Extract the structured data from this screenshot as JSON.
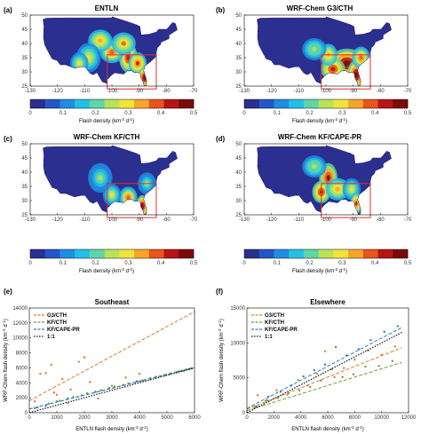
{
  "maps": [
    {
      "panel": "(a)",
      "title": "ENTLN",
      "id": "a"
    },
    {
      "panel": "(b)",
      "title": "WRF-Chem G3/CTH",
      "id": "b"
    },
    {
      "panel": "(c)",
      "title": "WRF-Chem KF/CTH",
      "id": "c"
    },
    {
      "panel": "(d)",
      "title": "WRF-Chem KF/CAPE-PR",
      "id": "d"
    }
  ],
  "map_axes": {
    "xticks": [
      "-130",
      "-120",
      "-110",
      "-100",
      "-90",
      "-80",
      "-70"
    ],
    "yticks": [
      "50",
      "45",
      "40",
      "35",
      "30",
      "25"
    ]
  },
  "colorbar": {
    "ticks": [
      "0",
      "0.1",
      "0.2",
      "0.3",
      "0.4",
      "0.5"
    ],
    "label": "Flash density (km",
    "label_sup1": "-2",
    "label_mid": " d",
    "label_sup2": "-1",
    "label_end": ")",
    "colors": [
      "#2b2f8f",
      "#2456c8",
      "#1f8ee0",
      "#22c0e8",
      "#5fd6a8",
      "#b7e35a",
      "#f2e33a",
      "#f6a52b",
      "#e8551d",
      "#b81414",
      "#7a0a0a"
    ]
  },
  "chart_data": [
    {
      "type": "scatter",
      "panel": "(e)",
      "title": "Southeast",
      "xlabel": "ENTLN  flash density (km",
      "ylabel": "WRF-Chem  flash density (km",
      "xlim": [
        0,
        6000
      ],
      "ylim": [
        0,
        14000
      ],
      "xticks": [
        "0",
        "1000",
        "2000",
        "3000",
        "4000",
        "5000",
        "6000"
      ],
      "yticks": [
        "0",
        "2000",
        "4000",
        "6000",
        "8000",
        "10000",
        "12000",
        "14000"
      ],
      "legend": [
        {
          "name": "G3/CTH",
          "color": "#e07b2f"
        },
        {
          "name": "KF/CTH",
          "color": "#6ea03a"
        },
        {
          "name": "KF/CAPE-PR",
          "color": "#2c80c2"
        },
        {
          "name": "1:1",
          "color": "#111111"
        }
      ],
      "fit_lines": [
        {
          "name": "G3/CTH",
          "x": [
            0,
            6000
          ],
          "y": [
            1600,
            13500
          ]
        },
        {
          "name": "KF/CTH",
          "x": [
            0,
            6000
          ],
          "y": [
            500,
            6100
          ]
        },
        {
          "name": "KF/CAPE-PR",
          "x": [
            0,
            6000
          ],
          "y": [
            500,
            6000
          ]
        },
        {
          "name": "1:1",
          "x": [
            0,
            6000
          ],
          "y": [
            0,
            6000
          ]
        }
      ],
      "series": [
        {
          "name": "G3/CTH",
          "color": "#e07b2f",
          "x": [
            200,
            400,
            600,
            800,
            1000,
            1200,
            1500,
            1800,
            2000,
            2200,
            2500,
            3000,
            3500,
            4000,
            300,
            900,
            1400
          ],
          "y": [
            1500,
            5200,
            5300,
            6400,
            2400,
            4500,
            3100,
            6800,
            7400,
            4100,
            1900,
            3600,
            4700,
            5200,
            700,
            2700,
            1300
          ]
        },
        {
          "name": "KF/CTH",
          "color": "#6ea03a",
          "x": [
            300,
            700,
            1100,
            1600,
            2100,
            2600,
            3100,
            3600,
            4100,
            4600,
            5100,
            5600,
            5900
          ],
          "y": [
            700,
            1200,
            1600,
            2100,
            2600,
            3000,
            3500,
            3900,
            4300,
            4800,
            5200,
            5600,
            5900
          ]
        },
        {
          "name": "KF/CAPE-PR",
          "color": "#2c80c2",
          "x": [
            200,
            600,
            1000,
            1400,
            1900,
            2400,
            2900,
            3400,
            3900,
            4400,
            4900,
            5400,
            5800
          ],
          "y": [
            600,
            900,
            1500,
            1900,
            2300,
            2800,
            3300,
            3700,
            4200,
            4600,
            5000,
            5500,
            5800
          ]
        }
      ]
    },
    {
      "type": "scatter",
      "panel": "(f)",
      "title": "Elsewhere",
      "xlabel": "ENTLN  flash density (km",
      "ylabel": "WRF-Chem  flash density (km",
      "xlim": [
        0,
        12000
      ],
      "ylim": [
        0,
        15000
      ],
      "xticks": [
        "0",
        "2000",
        "4000",
        "6000",
        "8000",
        "10000",
        "12000"
      ],
      "yticks": [
        "0",
        "5000",
        "10000",
        "15000"
      ],
      "legend": [
        {
          "name": "G3/CTH",
          "color": "#e07b2f"
        },
        {
          "name": "KF/CTH",
          "color": "#6ea03a"
        },
        {
          "name": "KF/CAPE-PR",
          "color": "#2c80c2"
        },
        {
          "name": "1:1",
          "color": "#111111"
        }
      ],
      "fit_lines": [
        {
          "name": "G3/CTH",
          "x": [
            0,
            11500
          ],
          "y": [
            500,
            9300
          ]
        },
        {
          "name": "KF/CTH",
          "x": [
            0,
            11500
          ],
          "y": [
            300,
            7200
          ]
        },
        {
          "name": "KF/CAPE-PR",
          "x": [
            0,
            11500
          ],
          "y": [
            600,
            12200
          ]
        },
        {
          "name": "1:1",
          "x": [
            0,
            11500
          ],
          "y": [
            0,
            11500
          ]
        }
      ],
      "series": [
        {
          "name": "G3/CTH",
          "color": "#e07b2f",
          "x": [
            800,
            1500,
            2200,
            3000,
            3800,
            4500,
            5200,
            5800,
            6500,
            7200,
            8000,
            9000,
            10000,
            11000
          ],
          "y": [
            2500,
            1800,
            3200,
            2600,
            4700,
            3900,
            5600,
            8800,
            5100,
            6400,
            7600,
            8900,
            8300,
            9500
          ]
        },
        {
          "name": "KF/CTH",
          "color": "#6ea03a",
          "x": [
            600,
            1400,
            2300,
            3100,
            3900,
            4700,
            5500,
            6300,
            7100,
            7900,
            8800,
            9800,
            10800
          ],
          "y": [
            800,
            1700,
            2100,
            2800,
            3200,
            3700,
            4600,
            6200,
            5100,
            5500,
            6600,
            6700,
            7400
          ]
        },
        {
          "name": "KF/CAPE-PR",
          "color": "#2c80c2",
          "x": [
            700,
            1600,
            2500,
            3300,
            4200,
            5000,
            5800,
            6600,
            7400,
            8300,
            9200,
            10200,
            11200
          ],
          "y": [
            900,
            2300,
            3000,
            3900,
            5200,
            6100,
            6900,
            9400,
            8200,
            9100,
            10400,
            11600,
            12400
          ]
        }
      ]
    }
  ]
}
